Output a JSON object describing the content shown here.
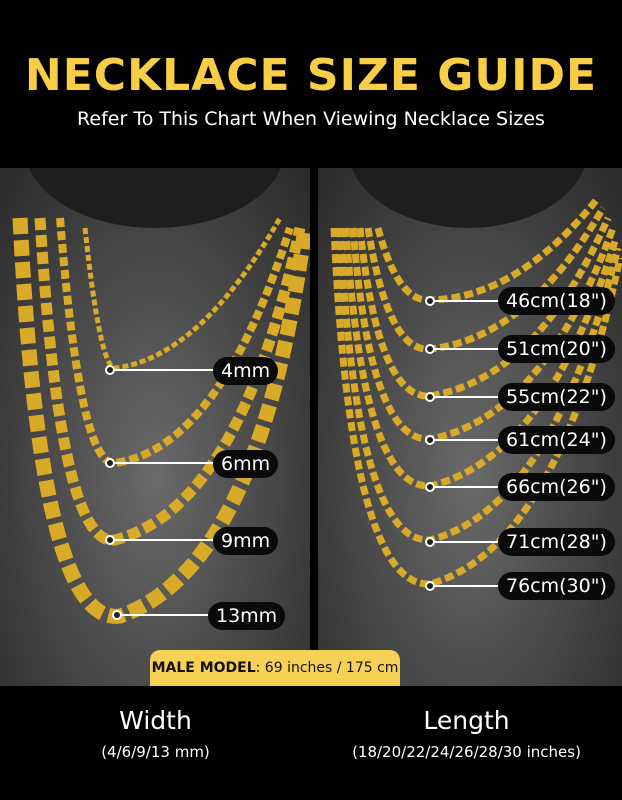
{
  "header": {
    "title": "NECKLACE SIZE GUIDE",
    "subtitle": "Refer To This Chart When Viewing Necklace Sizes"
  },
  "width_labels": [
    "4mm",
    "6mm",
    "9mm",
    "13mm"
  ],
  "length_labels": [
    "46cm(18\")",
    "51cm(20\")",
    "55cm(22\")",
    "61cm(24\")",
    "66cm(26\")",
    "71cm(28\")",
    "76cm(30\")"
  ],
  "model": {
    "label": "MALE MODEL",
    "value": ": 69 inches / 175 cm"
  },
  "footer": {
    "width_title": "Width",
    "width_sub": "(4/6/9/13 mm)",
    "length_title": "Length",
    "length_sub": "(18/20/22/24/26/28/30 inches)"
  },
  "colors": {
    "accent": "#F7CE46",
    "chain": "#D9A928",
    "badge": "#F6D155"
  }
}
